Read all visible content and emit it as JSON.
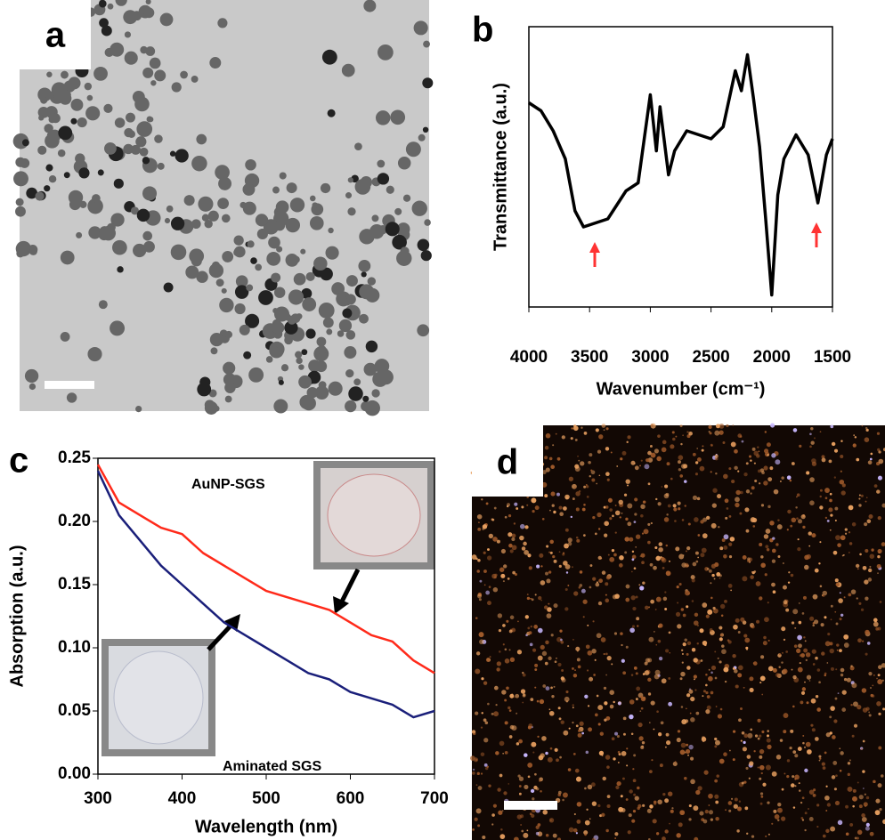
{
  "chart_data": [
    {
      "type": "line",
      "panel_label": "b",
      "ylabel": "Transmittance (a.u.)",
      "xlabel": "Wavenumber (cm⁻¹)",
      "xlim": [
        4000,
        1500
      ],
      "xticks": [
        4000,
        3500,
        3000,
        2500,
        2000,
        1500
      ],
      "ylim": [
        0,
        7
      ],
      "x": [
        4000,
        3900,
        3800,
        3700,
        3620,
        3550,
        3450,
        3350,
        3200,
        3100,
        3000,
        2950,
        2920,
        2850,
        2800,
        2700,
        2600,
        2500,
        2400,
        2300,
        2250,
        2200,
        2150,
        2100,
        2050,
        2000,
        1950,
        1900,
        1800,
        1700,
        1620,
        1550,
        1500
      ],
      "series": [
        {
          "color": "#000000",
          "values": [
            5.1,
            4.9,
            4.4,
            3.7,
            2.4,
            2.0,
            2.1,
            2.2,
            2.9,
            3.1,
            5.3,
            3.9,
            5.0,
            3.3,
            3.9,
            4.4,
            4.3,
            4.2,
            4.5,
            5.9,
            5.4,
            6.3,
            5.2,
            4.0,
            2.2,
            0.3,
            2.8,
            3.7,
            4.3,
            3.8,
            2.6,
            3.8,
            4.2
          ]
        }
      ]
    },
    {
      "type": "line",
      "panel_label": "c",
      "ylabel": "Absorption (a.u.)",
      "xlabel": "Wavelength (nm)",
      "xlim": [
        300,
        700
      ],
      "xticks": [
        300,
        400,
        500,
        600,
        700
      ],
      "ylim": [
        0,
        0.25
      ],
      "yticks": [
        {
          "value": 0,
          "label": "0.00"
        },
        {
          "value": 0.05,
          "label": "0.05"
        },
        {
          "value": 0.1,
          "label": "0.10"
        },
        {
          "value": 0.15,
          "label": "0.15"
        },
        {
          "value": 0.2,
          "label": "0.20"
        },
        {
          "value": 0.25,
          "label": "0.25"
        }
      ],
      "x": [
        300,
        325,
        350,
        375,
        400,
        425,
        450,
        475,
        500,
        525,
        550,
        575,
        600,
        625,
        650,
        675,
        700
      ],
      "series": [
        {
          "color": "#ff2a1a",
          "values": [
            0.245,
            0.215,
            0.205,
            0.195,
            0.19,
            0.175,
            0.165,
            0.155,
            0.145,
            0.14,
            0.135,
            0.13,
            0.12,
            0.11,
            0.105,
            0.09,
            0.08
          ]
        },
        {
          "color": "#1a1f7a",
          "values": [
            0.24,
            0.205,
            0.185,
            0.165,
            0.15,
            0.135,
            0.12,
            0.11,
            0.1,
            0.09,
            0.08,
            0.075,
            0.065,
            0.06,
            0.055,
            0.045,
            0.05
          ]
        }
      ],
      "annotations": [
        "AuNP-SGS",
        "Aminated SGS"
      ]
    }
  ],
  "images": [
    {
      "panel_label": "a"
    },
    {
      "panel_label": "d"
    }
  ]
}
